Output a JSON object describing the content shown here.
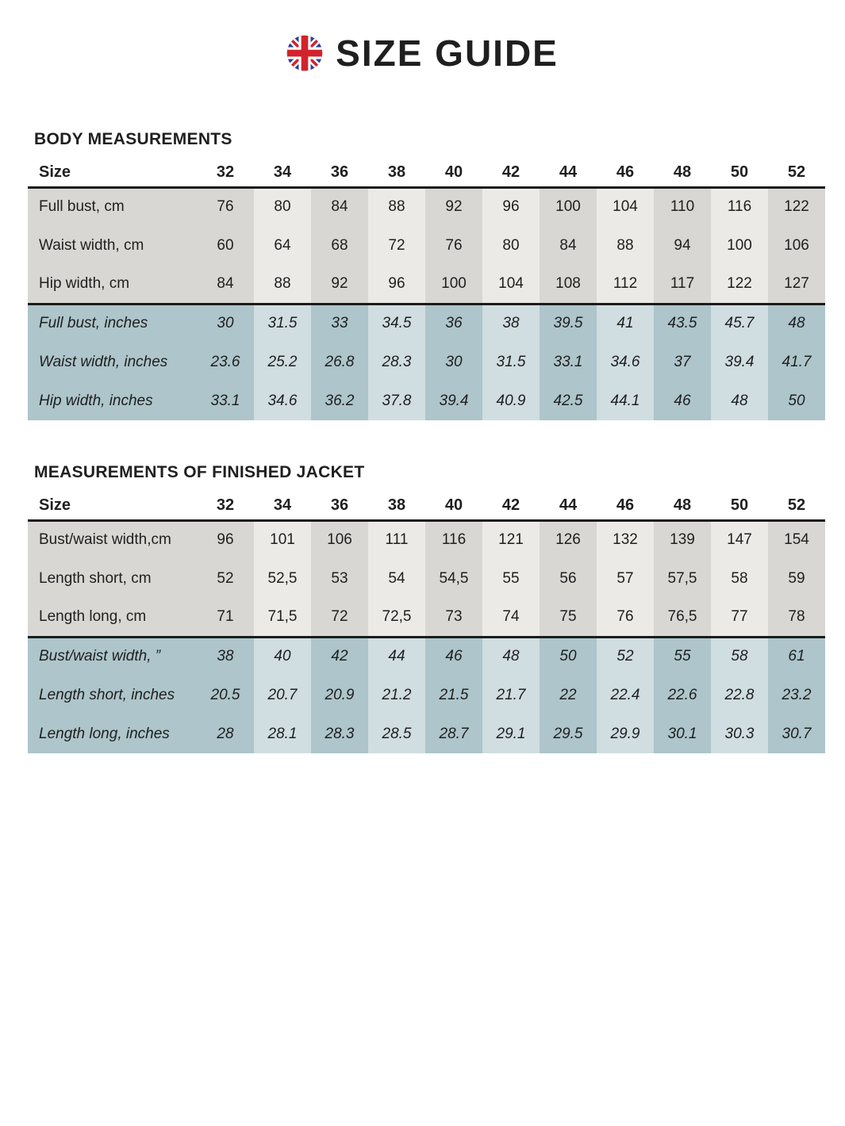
{
  "title": "SIZE GUIDE",
  "flag_icon": "uk-flag-icon",
  "colors": {
    "gray_dark": "#d8d7d4",
    "gray_light": "#ebeae7",
    "teal_dark": "#adc5cb",
    "teal_light": "#d0dde1",
    "rule": "#1c1c1c",
    "text": "#1f1f1f",
    "flag_blue": "#2b3f92",
    "flag_red": "#d2232c"
  },
  "tables": [
    {
      "heading": "BODY MEASUREMENTS",
      "size_label": "Size",
      "sizes": [
        "32",
        "34",
        "36",
        "38",
        "40",
        "42",
        "44",
        "46",
        "48",
        "50",
        "52"
      ],
      "cm_rows": [
        {
          "label": "Full bust, cm",
          "values": [
            "76",
            "80",
            "84",
            "88",
            "92",
            "96",
            "100",
            "104",
            "110",
            "116",
            "122"
          ]
        },
        {
          "label": "Waist width, cm",
          "values": [
            "60",
            "64",
            "68",
            "72",
            "76",
            "80",
            "84",
            "88",
            "94",
            "100",
            "106"
          ]
        },
        {
          "label": "Hip width, cm",
          "values": [
            "84",
            "88",
            "92",
            "96",
            "100",
            "104",
            "108",
            "112",
            "117",
            "122",
            "127"
          ]
        }
      ],
      "inch_rows": [
        {
          "label": "Full bust, inches",
          "values": [
            "30",
            "31.5",
            "33",
            "34.5",
            "36",
            "38",
            "39.5",
            "41",
            "43.5",
            "45.7",
            "48"
          ]
        },
        {
          "label": "Waist width, inches",
          "values": [
            "23.6",
            "25.2",
            "26.8",
            "28.3",
            "30",
            "31.5",
            "33.1",
            "34.6",
            "37",
            "39.4",
            "41.7"
          ]
        },
        {
          "label": "Hip width, inches",
          "values": [
            "33.1",
            "34.6",
            "36.2",
            "37.8",
            "39.4",
            "40.9",
            "42.5",
            "44.1",
            "46",
            "48",
            "50"
          ]
        }
      ]
    },
    {
      "heading": "MEASUREMENTS OF FINISHED JACKET",
      "size_label": "Size",
      "sizes": [
        "32",
        "34",
        "36",
        "38",
        "40",
        "42",
        "44",
        "46",
        "48",
        "50",
        "52"
      ],
      "cm_rows": [
        {
          "label": "Bust/waist width,cm",
          "values": [
            "96",
            "101",
            "106",
            "111",
            "116",
            "121",
            "126",
            "132",
            "139",
            "147",
            "154"
          ]
        },
        {
          "label": "Length short, cm",
          "values": [
            "52",
            "52,5",
            "53",
            "54",
            "54,5",
            "55",
            "56",
            "57",
            "57,5",
            "58",
            "59"
          ]
        },
        {
          "label": "Length long, cm",
          "values": [
            "71",
            "71,5",
            "72",
            "72,5",
            "73",
            "74",
            "75",
            "76",
            "76,5",
            "77",
            "78"
          ]
        }
      ],
      "inch_rows": [
        {
          "label": "Bust/waist width, ”",
          "values": [
            "38",
            "40",
            "42",
            "44",
            "46",
            "48",
            "50",
            "52",
            "55",
            "58",
            "61"
          ]
        },
        {
          "label": "Length short, inches",
          "values": [
            "20.5",
            "20.7",
            "20.9",
            "21.2",
            "21.5",
            "21.7",
            "22",
            "22.4",
            "22.6",
            "22.8",
            "23.2"
          ]
        },
        {
          "label": "Length long, inches",
          "values": [
            "28",
            "28.1",
            "28.3",
            "28.5",
            "28.7",
            "29.1",
            "29.5",
            "29.9",
            "30.1",
            "30.3",
            "30.7"
          ]
        }
      ]
    }
  ]
}
